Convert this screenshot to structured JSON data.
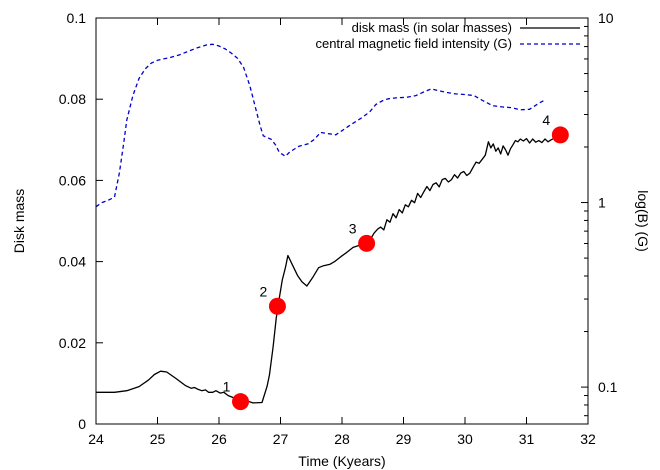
{
  "chart_data": {
    "type": "line",
    "xlabel": "Time (Kyears)",
    "ylabel": "Disk mass",
    "y2label": "log(B) (G)",
    "xlim": [
      24,
      32
    ],
    "ylim": [
      0,
      0.1
    ],
    "y2lim": [
      0.0631,
      10
    ],
    "y2scale": "log",
    "grid": false,
    "legend_position": "top-right",
    "x_ticks": [
      24,
      25,
      26,
      27,
      28,
      29,
      30,
      31,
      32
    ],
    "x_tick_labels": [
      "24",
      "25",
      "26",
      "27",
      "28",
      "29",
      "30",
      "31",
      "32"
    ],
    "y_ticks": [
      0,
      0.02,
      0.04,
      0.06,
      0.08,
      0.1
    ],
    "y_tick_labels": [
      "0",
      "0.02",
      "0.04",
      "0.06",
      "0.08",
      "0.1"
    ],
    "y2_ticks": [
      0.1,
      1,
      10
    ],
    "y2_tick_labels": [
      "0.1",
      "1",
      "10"
    ],
    "series": [
      {
        "name": "disk mass (in solar masses)",
        "axis": "left",
        "color": "#000000",
        "dash": "solid",
        "points": [
          [
            24.0,
            0.0078
          ],
          [
            24.3,
            0.0078
          ],
          [
            24.5,
            0.0082
          ],
          [
            24.7,
            0.0092
          ],
          [
            24.85,
            0.0108
          ],
          [
            24.95,
            0.0122
          ],
          [
            25.05,
            0.013
          ],
          [
            25.15,
            0.0128
          ],
          [
            25.3,
            0.0112
          ],
          [
            25.45,
            0.0095
          ],
          [
            25.55,
            0.0088
          ],
          [
            25.6,
            0.009
          ],
          [
            25.65,
            0.0086
          ],
          [
            25.72,
            0.0082
          ],
          [
            25.78,
            0.0084
          ],
          [
            25.83,
            0.0078
          ],
          [
            25.9,
            0.0078
          ],
          [
            25.95,
            0.0082
          ],
          [
            26.02,
            0.0076
          ],
          [
            26.08,
            0.0078
          ],
          [
            26.15,
            0.007
          ],
          [
            26.25,
            0.0064
          ],
          [
            26.4,
            0.006
          ],
          [
            26.55,
            0.0052
          ],
          [
            26.7,
            0.0053
          ],
          [
            26.78,
            0.0092
          ],
          [
            26.82,
            0.012
          ],
          [
            26.88,
            0.019
          ],
          [
            26.93,
            0.026
          ],
          [
            26.98,
            0.031
          ],
          [
            27.03,
            0.0355
          ],
          [
            27.08,
            0.0385
          ],
          [
            27.12,
            0.0415
          ],
          [
            27.2,
            0.039
          ],
          [
            27.28,
            0.0365
          ],
          [
            27.35,
            0.035
          ],
          [
            27.43,
            0.034
          ],
          [
            27.52,
            0.036
          ],
          [
            27.62,
            0.0385
          ],
          [
            27.7,
            0.039
          ],
          [
            27.8,
            0.0393
          ],
          [
            27.88,
            0.04
          ],
          [
            27.98,
            0.0412
          ],
          [
            28.08,
            0.0423
          ],
          [
            28.18,
            0.0435
          ],
          [
            28.28,
            0.044
          ],
          [
            28.38,
            0.045
          ],
          [
            28.45,
            0.0452
          ],
          [
            28.52,
            0.047
          ],
          [
            28.58,
            0.048
          ],
          [
            28.63,
            0.0485
          ],
          [
            28.68,
            0.0478
          ],
          [
            28.73,
            0.0503
          ],
          [
            28.78,
            0.0497
          ],
          [
            28.83,
            0.0518
          ],
          [
            28.88,
            0.0508
          ],
          [
            28.93,
            0.0528
          ],
          [
            28.98,
            0.052
          ],
          [
            29.03,
            0.054
          ],
          [
            29.08,
            0.0535
          ],
          [
            29.13,
            0.0551
          ],
          [
            29.18,
            0.0545
          ],
          [
            29.23,
            0.0568
          ],
          [
            29.28,
            0.0558
          ],
          [
            29.33,
            0.0572
          ],
          [
            29.38,
            0.0585
          ],
          [
            29.43,
            0.0575
          ],
          [
            29.48,
            0.059
          ],
          [
            29.53,
            0.0594
          ],
          [
            29.58,
            0.0584
          ],
          [
            29.63,
            0.0602
          ],
          [
            29.68,
            0.0605
          ],
          [
            29.73,
            0.0596
          ],
          [
            29.78,
            0.0602
          ],
          [
            29.83,
            0.0614
          ],
          [
            29.88,
            0.0606
          ],
          [
            29.93,
            0.0618
          ],
          [
            29.98,
            0.0622
          ],
          [
            30.03,
            0.0612
          ],
          [
            30.08,
            0.0618
          ],
          [
            30.13,
            0.0632
          ],
          [
            30.18,
            0.0645
          ],
          [
            30.23,
            0.0642
          ],
          [
            30.28,
            0.0652
          ],
          [
            30.33,
            0.0662
          ],
          [
            30.38,
            0.0695
          ],
          [
            30.42,
            0.068
          ],
          [
            30.46,
            0.069
          ],
          [
            30.5,
            0.0672
          ],
          [
            30.54,
            0.068
          ],
          [
            30.58,
            0.0665
          ],
          [
            30.62,
            0.0685
          ],
          [
            30.66,
            0.0675
          ],
          [
            30.7,
            0.0662
          ],
          [
            30.74,
            0.0678
          ],
          [
            30.78,
            0.0688
          ],
          [
            30.82,
            0.0698
          ],
          [
            30.86,
            0.0695
          ],
          [
            30.9,
            0.0702
          ],
          [
            30.95,
            0.0697
          ],
          [
            31.0,
            0.0703
          ],
          [
            31.05,
            0.0692
          ],
          [
            31.1,
            0.0702
          ],
          [
            31.15,
            0.0694
          ],
          [
            31.2,
            0.0698
          ],
          [
            31.25,
            0.0693
          ],
          [
            31.3,
            0.0702
          ],
          [
            31.35,
            0.0695
          ],
          [
            31.4,
            0.07
          ],
          [
            31.48,
            0.0706
          ],
          [
            31.55,
            0.0712
          ]
        ]
      },
      {
        "name": "central magnetic field intensity (G)",
        "axis": "right",
        "color": "#0000cc",
        "dash": "dashed",
        "points": [
          [
            24.0,
            0.95
          ],
          [
            24.1,
            1.0
          ],
          [
            24.2,
            1.03
          ],
          [
            24.3,
            1.07
          ],
          [
            24.38,
            1.45
          ],
          [
            24.45,
            2.1
          ],
          [
            24.5,
            2.8
          ],
          [
            24.6,
            3.8
          ],
          [
            24.7,
            4.7
          ],
          [
            24.8,
            5.3
          ],
          [
            24.9,
            5.7
          ],
          [
            25.0,
            5.9
          ],
          [
            25.1,
            6.0
          ],
          [
            25.2,
            6.1
          ],
          [
            25.35,
            6.3
          ],
          [
            25.5,
            6.6
          ],
          [
            25.65,
            6.9
          ],
          [
            25.8,
            7.15
          ],
          [
            25.9,
            7.2
          ],
          [
            26.0,
            7.05
          ],
          [
            26.1,
            6.8
          ],
          [
            26.2,
            6.45
          ],
          [
            26.3,
            6.05
          ],
          [
            26.4,
            5.4
          ],
          [
            26.5,
            4.3
          ],
          [
            26.6,
            3.2
          ],
          [
            26.67,
            2.6
          ],
          [
            26.72,
            2.3
          ],
          [
            26.85,
            2.2
          ],
          [
            26.92,
            2.05
          ],
          [
            26.98,
            1.87
          ],
          [
            27.08,
            1.78
          ],
          [
            27.15,
            1.88
          ],
          [
            27.3,
            2.02
          ],
          [
            27.45,
            2.08
          ],
          [
            27.55,
            2.2
          ],
          [
            27.65,
            2.4
          ],
          [
            27.75,
            2.37
          ],
          [
            27.9,
            2.33
          ],
          [
            28.0,
            2.45
          ],
          [
            28.15,
            2.65
          ],
          [
            28.3,
            2.85
          ],
          [
            28.45,
            3.1
          ],
          [
            28.55,
            3.4
          ],
          [
            28.65,
            3.55
          ],
          [
            28.75,
            3.65
          ],
          [
            28.9,
            3.7
          ],
          [
            29.05,
            3.72
          ],
          [
            29.2,
            3.8
          ],
          [
            29.35,
            4.0
          ],
          [
            29.45,
            4.13
          ],
          [
            29.55,
            4.05
          ],
          [
            29.7,
            3.95
          ],
          [
            29.85,
            3.88
          ],
          [
            30.0,
            3.85
          ],
          [
            30.15,
            3.8
          ],
          [
            30.3,
            3.55
          ],
          [
            30.45,
            3.35
          ],
          [
            30.6,
            3.3
          ],
          [
            30.75,
            3.27
          ],
          [
            30.9,
            3.18
          ],
          [
            31.05,
            3.2
          ],
          [
            31.2,
            3.45
          ],
          [
            31.3,
            3.6
          ]
        ]
      }
    ],
    "markers": [
      {
        "label": "1",
        "x": 26.35,
        "y": 0.0055,
        "color": "#ff0000"
      },
      {
        "label": "2",
        "x": 26.95,
        "y": 0.029,
        "color": "#ff0000"
      },
      {
        "label": "3",
        "x": 28.4,
        "y": 0.0445,
        "color": "#ff0000"
      },
      {
        "label": "4",
        "x": 31.55,
        "y": 0.0712,
        "color": "#ff0000"
      }
    ]
  }
}
